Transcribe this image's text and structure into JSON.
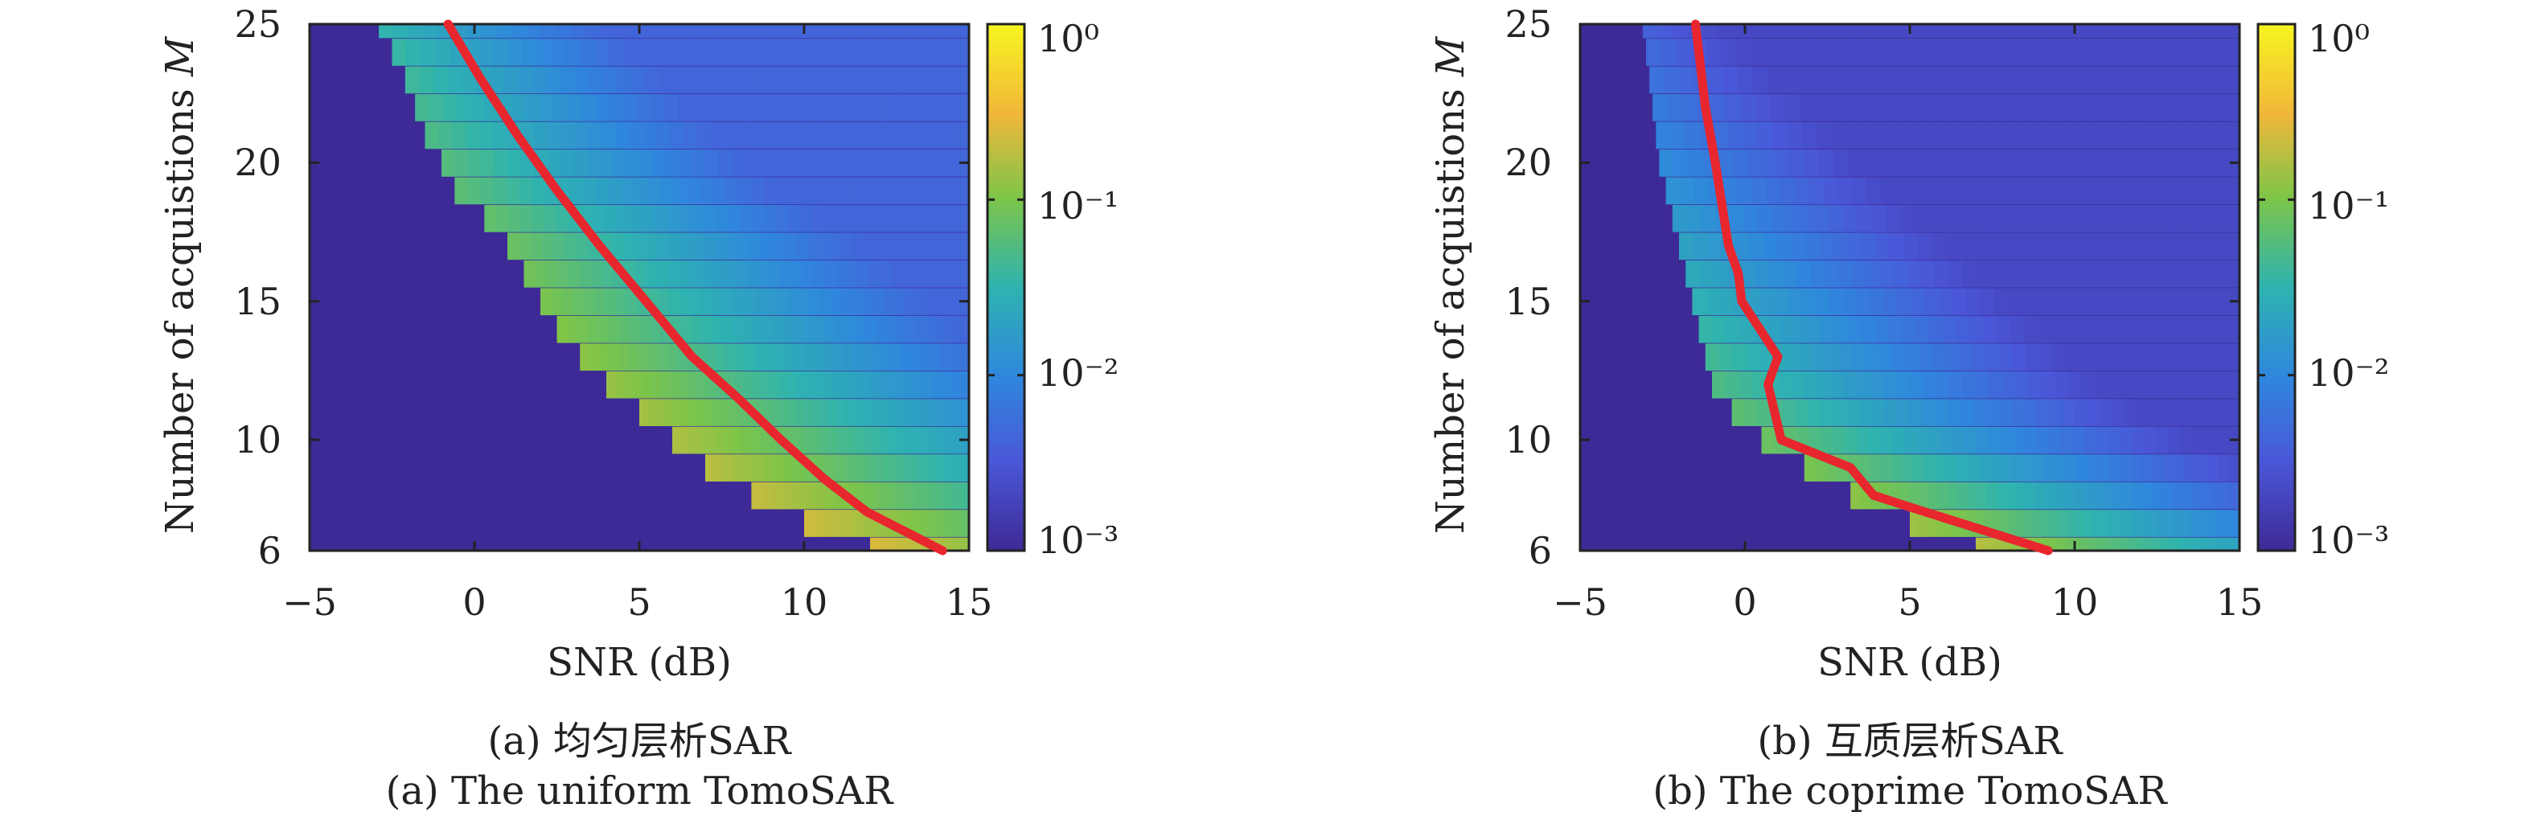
{
  "chart_data": [
    {
      "type": "heatmap",
      "xlabel": "SNR (dB)",
      "ylabel": "Number of acquistions M",
      "ylabel_text": "Number of acquistions ",
      "ylabel_var": "M",
      "xlim": [
        -5,
        15
      ],
      "ylim": [
        6,
        25
      ],
      "xticks": [
        "−5",
        "0",
        "5",
        "10",
        "15"
      ],
      "yticks": [
        "6",
        "10",
        "15",
        "20",
        "25"
      ],
      "xtick_values": [
        -5,
        0,
        5,
        10,
        15
      ],
      "ytick_values": [
        6,
        10,
        15,
        20,
        25
      ],
      "colorbar": {
        "scale": "log",
        "range": [
          0.001,
          1
        ],
        "ticks": [
          "10⁻³",
          "10⁻²",
          "10⁻¹",
          "10⁰"
        ],
        "tick_values": [
          0.001,
          0.01,
          0.1,
          1
        ],
        "colormap": "parula"
      },
      "boundary_snr": [
        -2.9,
        -2.5,
        -2.1,
        -1.8,
        -1.5,
        -1.0,
        -0.6,
        0.3,
        1.0,
        1.5,
        2.0,
        2.5,
        3.2,
        4.0,
        5.0,
        6.0,
        7.0,
        8.4,
        10.0,
        12.0
      ],
      "boundary_m": [
        25,
        24,
        23,
        22,
        21,
        20,
        19,
        18,
        17,
        16,
        15,
        14,
        13,
        12,
        11,
        10,
        9,
        8,
        7,
        6
      ],
      "curve": {
        "color": "#e8262e",
        "x": [
          -0.8,
          0.2,
          1.3,
          2.5,
          3.8,
          5.2,
          6.6,
          8.0,
          9.3,
          10.6,
          11.9,
          14.2
        ],
        "y": [
          25,
          23,
          21,
          19,
          17,
          15,
          13,
          11.5,
          10,
          8.6,
          7.4,
          6
        ]
      },
      "caption_cn": "(a) 均匀层析SAR",
      "caption_en": "(a) The uniform TomoSAR"
    },
    {
      "type": "heatmap",
      "xlabel": "SNR (dB)",
      "ylabel": "Number of acquistions M",
      "ylabel_text": "Number of acquistions ",
      "ylabel_var": "M",
      "xlim": [
        -5,
        15
      ],
      "ylim": [
        6,
        25
      ],
      "xticks": [
        "−5",
        "0",
        "5",
        "10",
        "15"
      ],
      "yticks": [
        "6",
        "10",
        "15",
        "20",
        "25"
      ],
      "xtick_values": [
        -5,
        0,
        5,
        10,
        15
      ],
      "ytick_values": [
        6,
        10,
        15,
        20,
        25
      ],
      "colorbar": {
        "scale": "log",
        "range": [
          0.001,
          1
        ],
        "ticks": [
          "10⁻³",
          "10⁻²",
          "10⁻¹",
          "10⁰"
        ],
        "tick_values": [
          0.001,
          0.01,
          0.1,
          1
        ],
        "colormap": "parula"
      },
      "boundary_snr": [
        -3.1,
        -3.0,
        -2.9,
        -2.8,
        -2.7,
        -2.6,
        -2.4,
        -2.2,
        -2.0,
        -1.8,
        -1.6,
        -1.4,
        -1.2,
        -1.0,
        -0.4,
        0.5,
        1.8,
        3.2,
        5.0,
        7.0
      ],
      "boundary_m": [
        25,
        24,
        23,
        22,
        21,
        20,
        19,
        18,
        17,
        16,
        15,
        14,
        13,
        12,
        11,
        10,
        9,
        8,
        7,
        6
      ],
      "curve": {
        "color": "#e8262e",
        "x": [
          -1.5,
          -1.2,
          -0.9,
          -0.5,
          -0.2,
          -0.1,
          1.0,
          0.7,
          1.1,
          3.2,
          3.9,
          5.2,
          9.2
        ],
        "y": [
          25,
          22,
          20,
          17,
          16,
          15,
          13,
          12,
          10,
          9,
          8,
          7.5,
          6
        ]
      },
      "caption_cn": "(b) 互质层析SAR",
      "caption_en": "(b) The coprime TomoSAR"
    }
  ]
}
